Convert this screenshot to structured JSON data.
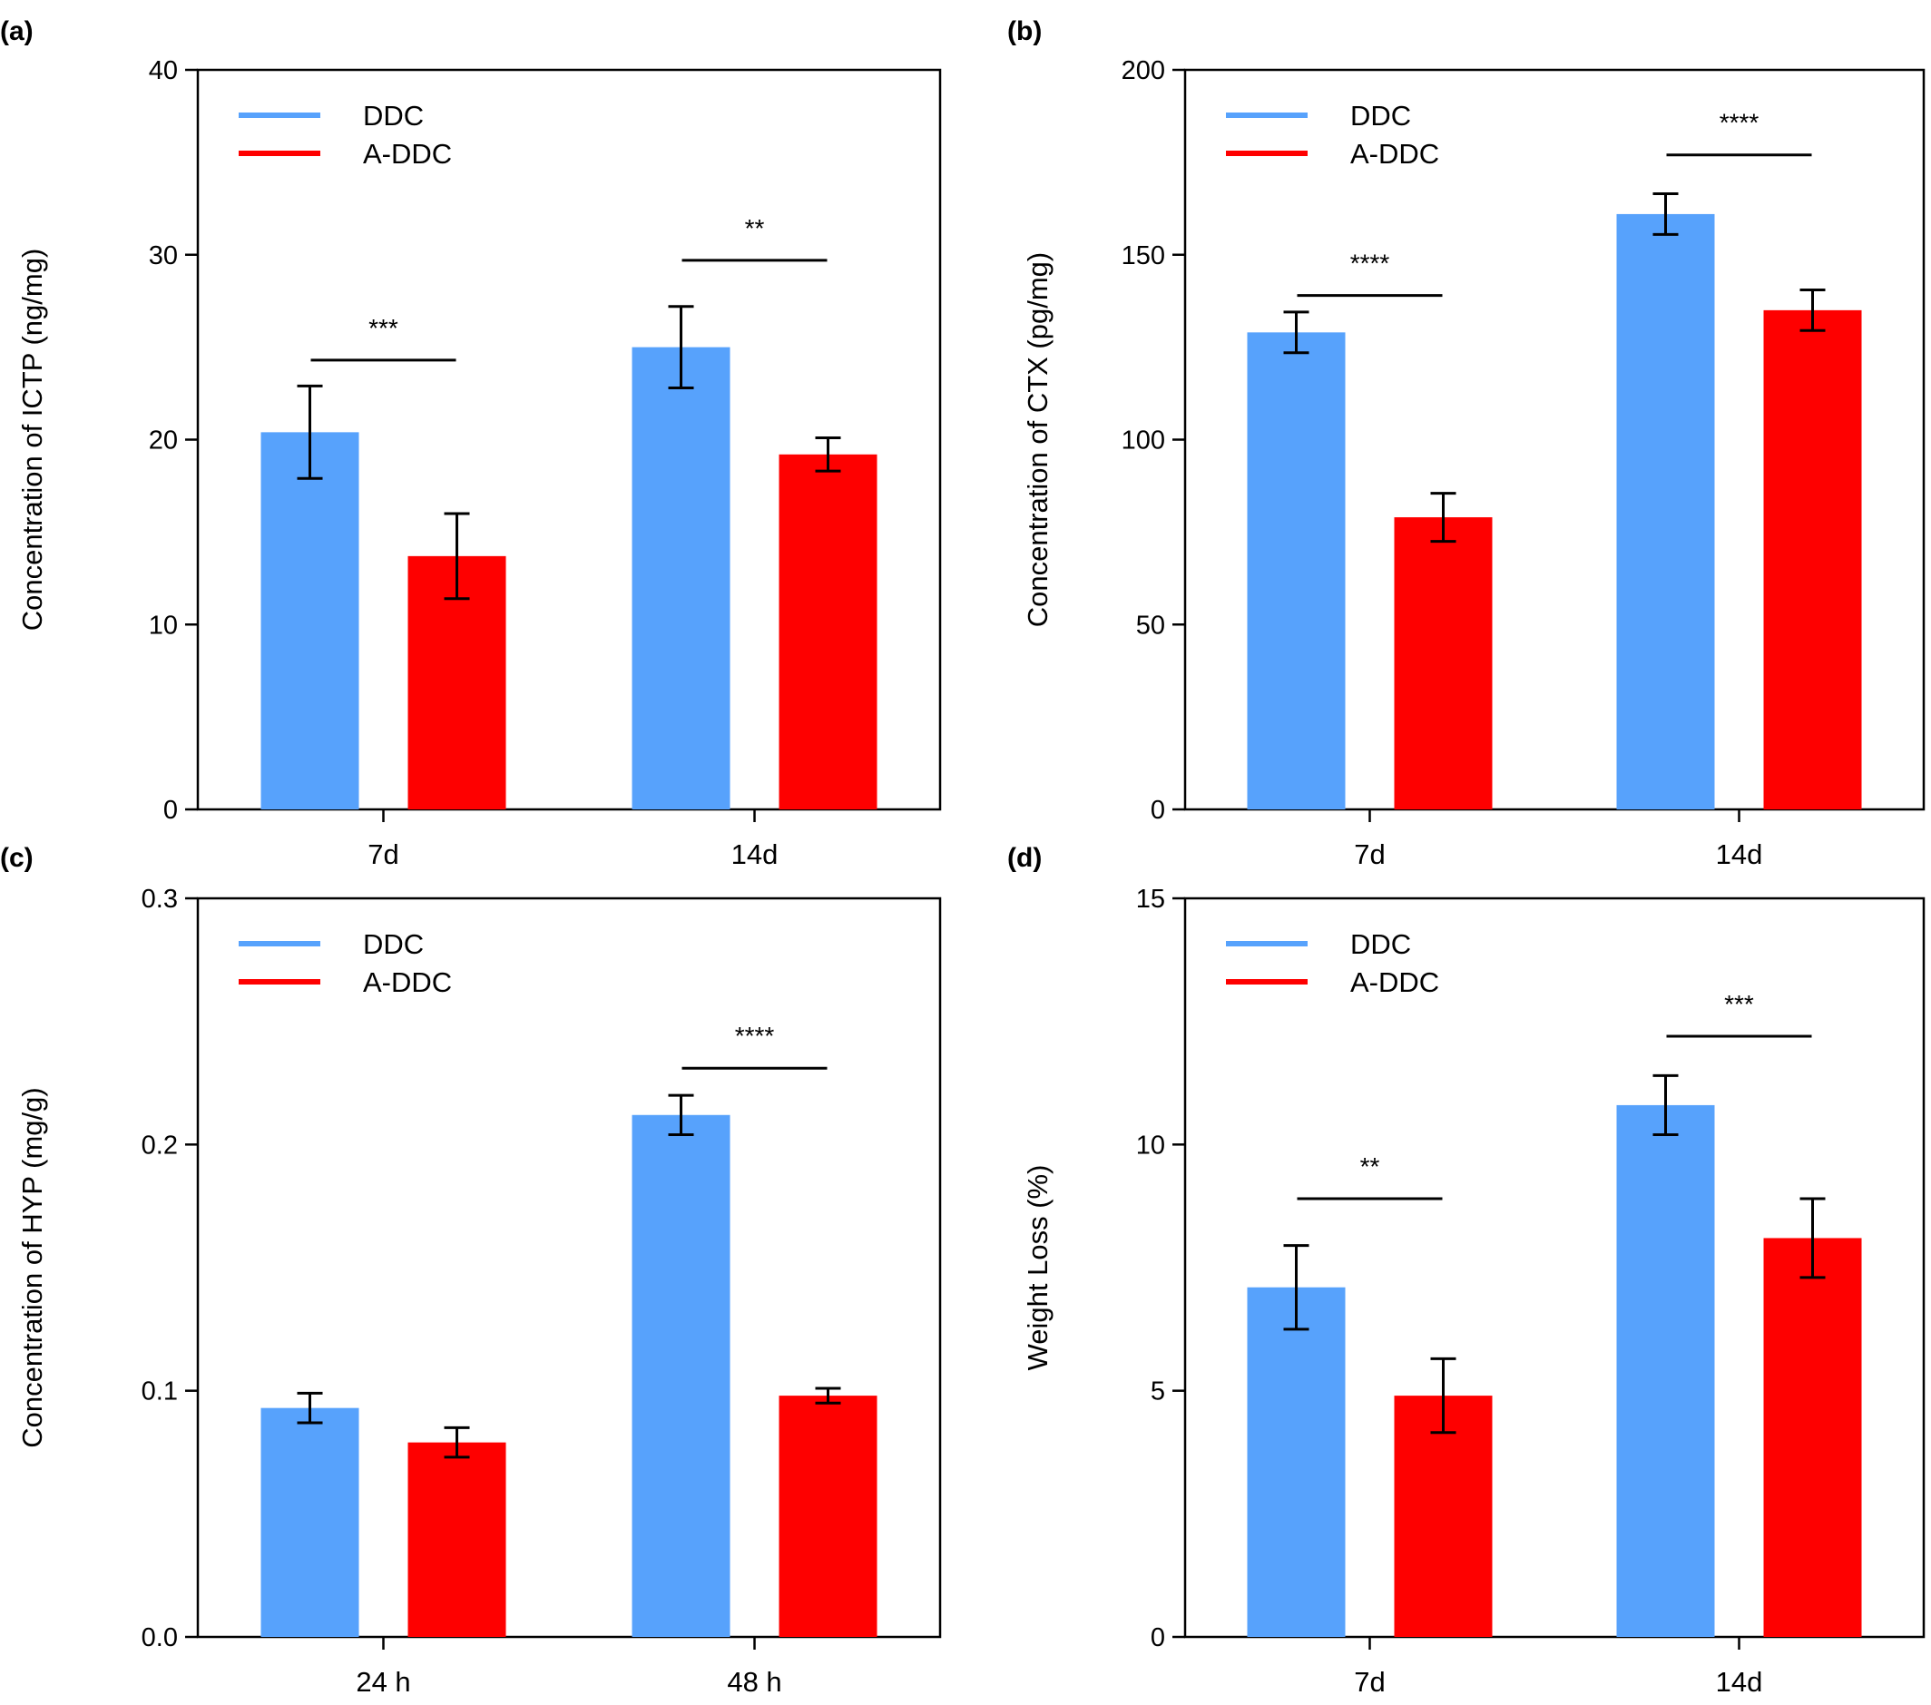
{
  "colors": {
    "DDC": "#57a2fc",
    "A-DDC": "#fe0000",
    "axis": "#000000"
  },
  "chart_data": [
    {
      "panel_label": "(a)",
      "type": "bar",
      "categories": [
        "7d",
        "14d"
      ],
      "ylabel": "Concentration of ICTP (ng/mg)",
      "xlabel": "",
      "ylim": [
        0,
        40
      ],
      "yticks": [
        0,
        10,
        20,
        30,
        40
      ],
      "ytick_labels": [
        "0",
        "10",
        "20",
        "30",
        "40"
      ],
      "legend": {
        "position": "top-left",
        "entries": [
          "DDC",
          "A-DDC"
        ]
      },
      "series": [
        {
          "name": "DDC",
          "values": [
            20.4,
            25.0
          ],
          "errors": [
            2.5,
            2.2
          ]
        },
        {
          "name": "A-DDC",
          "values": [
            13.7,
            19.2
          ],
          "errors": [
            2.3,
            0.9
          ]
        }
      ],
      "significance": [
        {
          "category_index": 0,
          "label": "***",
          "y": 24.3
        },
        {
          "category_index": 1,
          "label": "**",
          "y": 29.7
        }
      ]
    },
    {
      "panel_label": "(b)",
      "type": "bar",
      "categories": [
        "7d",
        "14d"
      ],
      "ylabel": "Concentration of CTX (pg/mg)",
      "xlabel": "",
      "ylim": [
        0,
        200
      ],
      "yticks": [
        0,
        50,
        100,
        150,
        200
      ],
      "ytick_labels": [
        "0",
        "50",
        "100",
        "150",
        "200"
      ],
      "legend": {
        "position": "top-left",
        "entries": [
          "DDC",
          "A-DDC"
        ]
      },
      "series": [
        {
          "name": "DDC",
          "values": [
            129,
            161
          ],
          "errors": [
            5.5,
            5.5
          ]
        },
        {
          "name": "A-DDC",
          "values": [
            79,
            135
          ],
          "errors": [
            6.5,
            5.5
          ]
        }
      ],
      "significance": [
        {
          "category_index": 0,
          "label": "****",
          "y": 139
        },
        {
          "category_index": 1,
          "label": "****",
          "y": 177
        }
      ]
    },
    {
      "panel_label": "(c)",
      "type": "bar",
      "categories": [
        "24 h",
        "48 h"
      ],
      "ylabel": "Concentration of HYP (mg/g)",
      "xlabel": "",
      "ylim": [
        0,
        0.3
      ],
      "yticks": [
        0,
        0.1,
        0.2,
        0.3
      ],
      "ytick_labels": [
        "0.0",
        "0.1",
        "0.2",
        "0.3"
      ],
      "legend": {
        "position": "top-left",
        "entries": [
          "DDC",
          "A-DDC"
        ]
      },
      "series": [
        {
          "name": "DDC",
          "values": [
            0.093,
            0.212
          ],
          "errors": [
            0.006,
            0.008
          ]
        },
        {
          "name": "A-DDC",
          "values": [
            0.079,
            0.098
          ],
          "errors": [
            0.006,
            0.003
          ]
        }
      ],
      "significance": [
        {
          "category_index": 1,
          "label": "****",
          "y": 0.231
        }
      ]
    },
    {
      "panel_label": "(d)",
      "type": "bar",
      "categories": [
        "7d",
        "14d"
      ],
      "ylabel": "Weight Loss (%)",
      "xlabel": "",
      "ylim": [
        0,
        15
      ],
      "yticks": [
        0,
        5,
        10,
        15
      ],
      "ytick_labels": [
        "0",
        "5",
        "10",
        "15"
      ],
      "legend": {
        "position": "top-left",
        "entries": [
          "DDC",
          "A-DDC"
        ]
      },
      "series": [
        {
          "name": "DDC",
          "values": [
            7.1,
            10.8
          ],
          "errors": [
            0.85,
            0.6
          ]
        },
        {
          "name": "A-DDC",
          "values": [
            4.9,
            8.1
          ],
          "errors": [
            0.75,
            0.8
          ]
        }
      ],
      "significance": [
        {
          "category_index": 0,
          "label": "**",
          "y": 8.9
        },
        {
          "category_index": 1,
          "label": "***",
          "y": 12.2
        }
      ]
    }
  ]
}
